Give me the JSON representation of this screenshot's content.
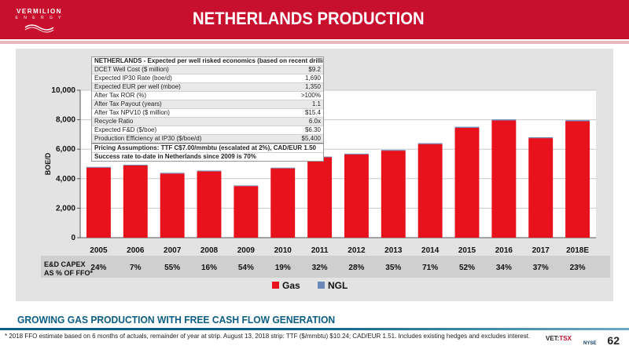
{
  "header": {
    "logo_line1": "VERMILION",
    "logo_line2": "E N E R G Y",
    "title": "NETHERLANDS PRODUCTION"
  },
  "colors": {
    "brand_red": "#c8102e",
    "gas": "#e8121c",
    "ngl": "#6b88b8",
    "accent_blue": "#0b5d84"
  },
  "econ_table": {
    "title": "NETHERLANDS - Expected per well risked economics (based on recent drilling)",
    "rows": [
      {
        "label": "DCET Well Cost ($ million)",
        "value": "$9.2"
      },
      {
        "label": "Expected IP30 Rate (boe/d)",
        "value": "1,690"
      },
      {
        "label": "Expected EUR per well (mboe)",
        "value": "1,350"
      },
      {
        "label": "After Tax ROR (%)",
        "value": ">100%"
      },
      {
        "label": "After Tax Payout (years)",
        "value": "1.1"
      },
      {
        "label": "After Tax NPV10 ($ million)",
        "value": "$15.4"
      },
      {
        "label": "Recycle Ratio",
        "value": "6.0x"
      },
      {
        "label": "Expected F&D ($/boe)",
        "value": "$6.30"
      },
      {
        "label": "Production Efficiency at IP30 ($/boe/d)",
        "value": "$5,400"
      }
    ],
    "notes": [
      "Pricing Assumptions: TTF C$7.00/mmbtu (escalated at 2%), CAD/EUR 1.50",
      "Success rate to-date in Netherlands since 2009 is 70%"
    ]
  },
  "chart_data": {
    "type": "bar",
    "categories": [
      "2005",
      "2006",
      "2007",
      "2008",
      "2009",
      "2010",
      "2011",
      "2012",
      "2013",
      "2014",
      "2015",
      "2016",
      "2017",
      "2018E"
    ],
    "series": [
      {
        "name": "Gas",
        "values": [
          4750,
          4900,
          4350,
          4500,
          3500,
          4700,
          5450,
          5650,
          5900,
          6350,
          7450,
          7950,
          6750,
          7900
        ]
      },
      {
        "name": "NGL",
        "values": [
          50,
          50,
          50,
          50,
          40,
          50,
          50,
          50,
          50,
          60,
          70,
          70,
          60,
          70
        ]
      }
    ],
    "stacked": true,
    "ylabel": "BOE/D",
    "ylim": [
      0,
      10000
    ],
    "yticks": [
      "0",
      "2,000",
      "4,000",
      "6,000",
      "8,000",
      "10,000"
    ],
    "grid": true,
    "legend_position": "bottom"
  },
  "capex": {
    "label_line1": "E&D CAPEX",
    "label_line2": "AS % OF FFO*",
    "values": [
      "24%",
      "7%",
      "55%",
      "16%",
      "54%",
      "19%",
      "32%",
      "28%",
      "35%",
      "71%",
      "52%",
      "34%",
      "37%",
      "23%"
    ]
  },
  "tagline": "GROWING GAS PRODUCTION WITH FREE CASH FLOW GENERATION",
  "footnote": "* 2018 FFO estimate based on 6 months of actuals, remainder of year at strip. August 13, 2018 strip: TTF ($/mmbtu) $10.24; CAD/EUR 1.51.  Includes existing hedges and excludes interest.",
  "exchange": {
    "vet": "VET:",
    "tsx": "TSX",
    "nyse": "NYSE"
  },
  "page_number": "62"
}
